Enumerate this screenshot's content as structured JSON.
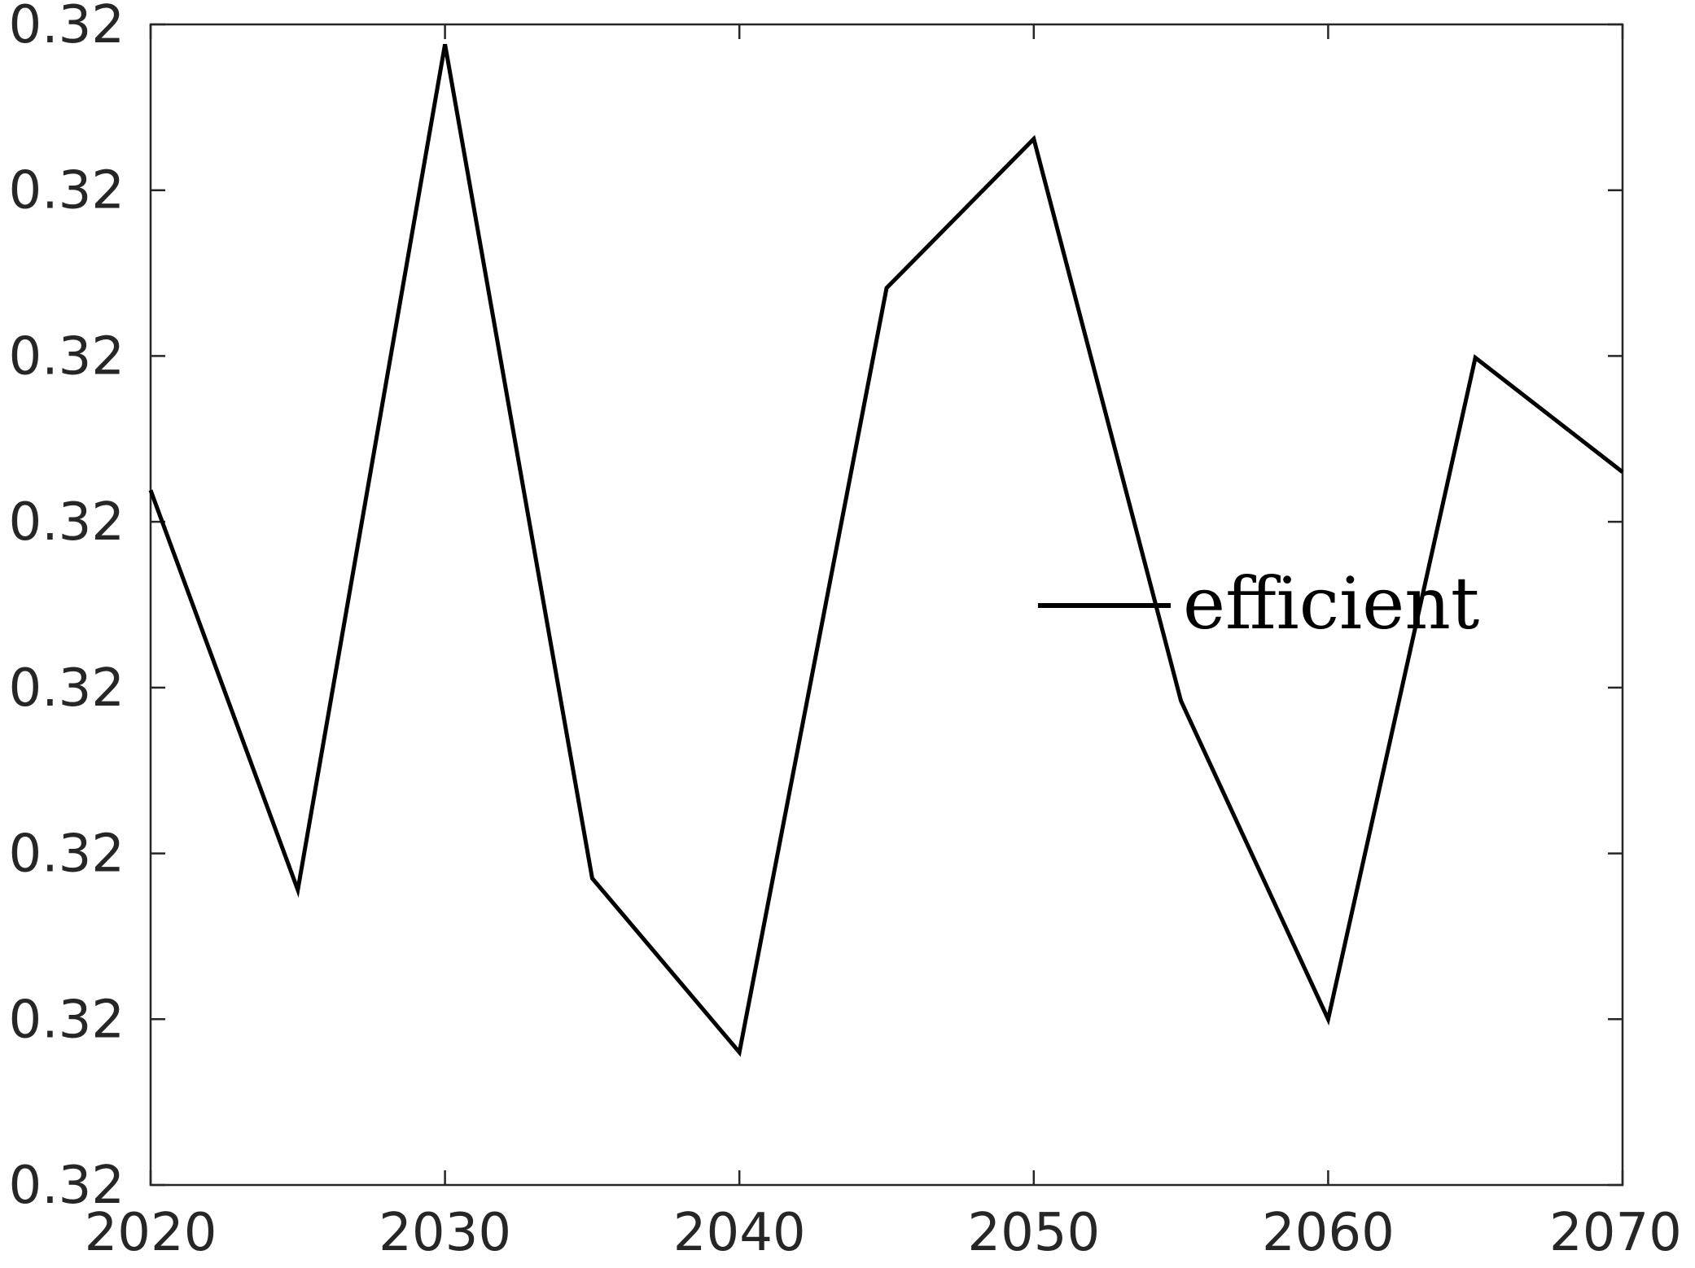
{
  "chart_data": {
    "type": "line",
    "title": "",
    "xlabel": "",
    "ylabel": "",
    "x": [
      2020,
      2025,
      2030,
      2035,
      2040,
      2045,
      2050,
      2055,
      2060,
      2065,
      2070
    ],
    "series": [
      {
        "name": "efficient",
        "color": "#000000",
        "values": [
          0.32,
          0.32,
          0.32,
          0.32,
          0.32,
          0.32,
          0.32,
          0.32,
          0.32,
          0.32,
          0.32
        ]
      }
    ],
    "series_level": [
      4.19,
      1.78,
      6.88,
      1.85,
      0.8,
      5.41,
      6.31,
      2.92,
      1.0,
      4.99,
      4.3
    ],
    "x_ticks": [
      "2020",
      "2030",
      "2040",
      "2050",
      "2060",
      "2070"
    ],
    "y_ticks": [
      "0.32",
      "0.32",
      "0.32",
      "0.32",
      "0.32",
      "0.32",
      "0.32",
      "0.32"
    ],
    "xlim": [
      2020,
      2070
    ],
    "ylim": [
      0,
      7
    ],
    "y_tick_levels": [
      0,
      1,
      2,
      3,
      4,
      5,
      6,
      7
    ],
    "grid": false,
    "legend_position": "right-center"
  }
}
